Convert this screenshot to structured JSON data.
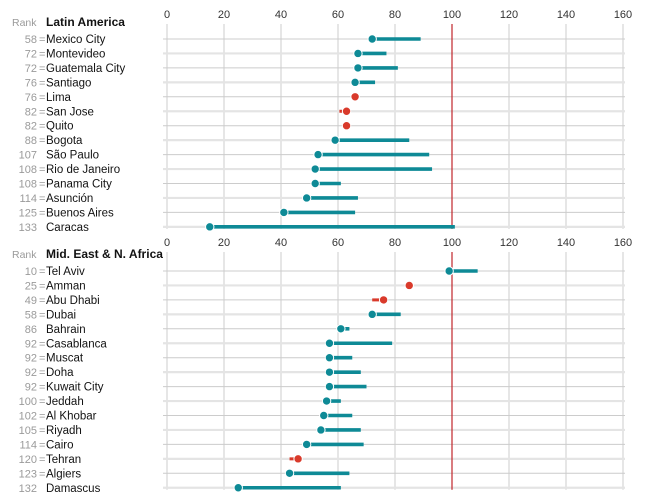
{
  "chart_data": {
    "type": "dumbbell",
    "xlim": [
      0,
      160
    ],
    "xticks": [
      0,
      20,
      40,
      60,
      80,
      100,
      120,
      140,
      160
    ],
    "reference_line": 100,
    "rank_header": "Rank",
    "colors": {
      "increase": "#0e8a96",
      "decrease": "#d93a2b",
      "reference": "#c0262b",
      "grid": "#cccccc",
      "row_alt": "#e4e4e4"
    },
    "panels": [
      {
        "title": "Latin America",
        "rows": [
          {
            "rank": "58",
            "tied": true,
            "city": "Mexico City",
            "start": 72,
            "end": 89,
            "direction": "increase"
          },
          {
            "rank": "72",
            "tied": true,
            "city": "Montevideo",
            "start": 67,
            "end": 77,
            "direction": "increase"
          },
          {
            "rank": "72",
            "tied": true,
            "city": "Guatemala City",
            "start": 67,
            "end": 81,
            "direction": "increase"
          },
          {
            "rank": "76",
            "tied": true,
            "city": "Santiago",
            "start": 66,
            "end": 73,
            "direction": "increase"
          },
          {
            "rank": "76",
            "tied": true,
            "city": "Lima",
            "start": 66,
            "end": 66,
            "direction": "decrease"
          },
          {
            "rank": "82",
            "tied": true,
            "city": "San Jose",
            "start": 63,
            "end": 60.5,
            "direction": "decrease"
          },
          {
            "rank": "82",
            "tied": true,
            "city": "Quito",
            "start": 63,
            "end": 61.5,
            "direction": "decrease"
          },
          {
            "rank": "88",
            "tied": true,
            "city": "Bogota",
            "start": 59,
            "end": 85,
            "direction": "increase"
          },
          {
            "rank": "107",
            "tied": false,
            "city": "São Paulo",
            "start": 53,
            "end": 92,
            "direction": "increase"
          },
          {
            "rank": "108",
            "tied": true,
            "city": "Rio de Janeiro",
            "start": 52,
            "end": 93,
            "direction": "increase"
          },
          {
            "rank": "108",
            "tied": true,
            "city": "Panama City",
            "start": 52,
            "end": 61,
            "direction": "increase"
          },
          {
            "rank": "114",
            "tied": true,
            "city": "Asunción",
            "start": 49,
            "end": 67,
            "direction": "increase"
          },
          {
            "rank": "125",
            "tied": true,
            "city": "Buenos Aires",
            "start": 41,
            "end": 66,
            "direction": "increase"
          },
          {
            "rank": "133",
            "tied": false,
            "city": "Caracas",
            "start": 15,
            "end": 101,
            "direction": "increase"
          }
        ]
      },
      {
        "title": "Mid. East & N. Africa",
        "rows": [
          {
            "rank": "10",
            "tied": true,
            "city": "Tel Aviv",
            "start": 99,
            "end": 109,
            "direction": "increase"
          },
          {
            "rank": "25",
            "tied": true,
            "city": "Amman",
            "start": 85,
            "end": 85,
            "direction": "decrease"
          },
          {
            "rank": "49",
            "tied": true,
            "city": "Abu Dhabi",
            "start": 76,
            "end": 72,
            "direction": "decrease"
          },
          {
            "rank": "58",
            "tied": true,
            "city": "Dubai",
            "start": 72,
            "end": 82,
            "direction": "increase"
          },
          {
            "rank": "86",
            "tied": false,
            "city": "Bahrain",
            "start": 61,
            "end": 64,
            "direction": "increase"
          },
          {
            "rank": "92",
            "tied": true,
            "city": "Casablanca",
            "start": 57,
            "end": 79,
            "direction": "increase"
          },
          {
            "rank": "92",
            "tied": true,
            "city": "Muscat",
            "start": 57,
            "end": 65,
            "direction": "increase"
          },
          {
            "rank": "92",
            "tied": true,
            "city": "Doha",
            "start": 57,
            "end": 68,
            "direction": "increase"
          },
          {
            "rank": "92",
            "tied": true,
            "city": "Kuwait City",
            "start": 57,
            "end": 70,
            "direction": "increase"
          },
          {
            "rank": "100",
            "tied": true,
            "city": "Jeddah",
            "start": 56,
            "end": 61,
            "direction": "increase"
          },
          {
            "rank": "102",
            "tied": true,
            "city": "Al Khobar",
            "start": 55,
            "end": 65,
            "direction": "increase"
          },
          {
            "rank": "105",
            "tied": true,
            "city": "Riyadh",
            "start": 54,
            "end": 68,
            "direction": "increase"
          },
          {
            "rank": "114",
            "tied": true,
            "city": "Cairo",
            "start": 49,
            "end": 69,
            "direction": "increase"
          },
          {
            "rank": "120",
            "tied": true,
            "city": "Tehran",
            "start": 46,
            "end": 43,
            "direction": "decrease"
          },
          {
            "rank": "123",
            "tied": true,
            "city": "Algiers",
            "start": 43,
            "end": 64,
            "direction": "increase"
          },
          {
            "rank": "132",
            "tied": false,
            "city": "Damascus",
            "start": 25,
            "end": 61,
            "direction": "increase"
          }
        ]
      }
    ]
  }
}
